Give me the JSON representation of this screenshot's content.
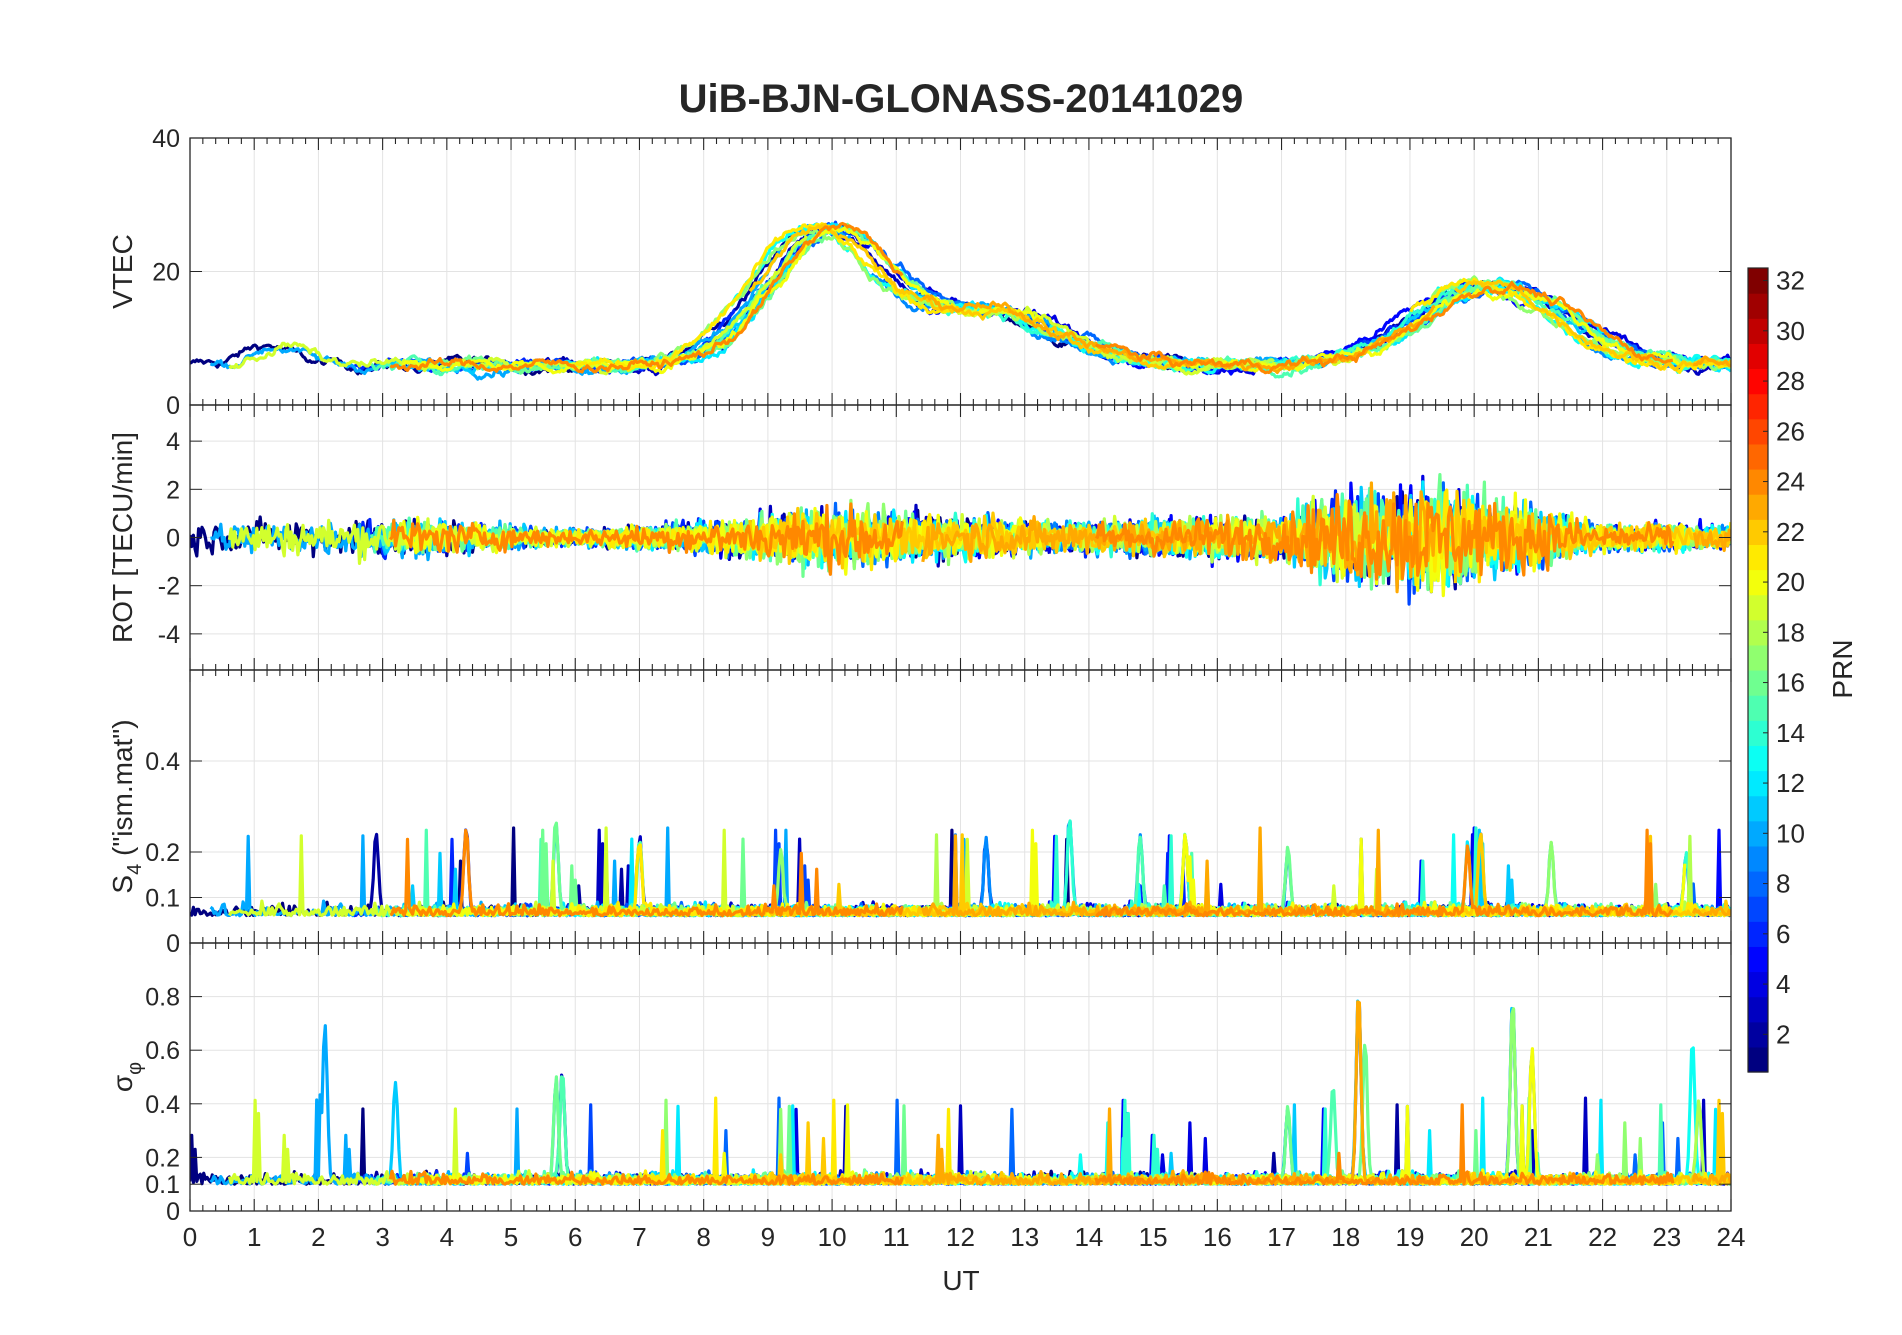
{
  "chart_data": {
    "type": "line",
    "title": "UiB-BJN-GLONASS-20141029",
    "xlabel": "UT",
    "x_ticks": [
      "0",
      "1",
      "2",
      "3",
      "4",
      "5",
      "6",
      "7",
      "8",
      "9",
      "10",
      "11",
      "12",
      "13",
      "14",
      "15",
      "16",
      "17",
      "18",
      "19",
      "20",
      "21",
      "22",
      "23",
      "24"
    ],
    "xlim": [
      0,
      24
    ],
    "grid": true,
    "colorbar": {
      "label": "PRN",
      "range": [
        1,
        32
      ],
      "ticks": [
        "2",
        "4",
        "6",
        "8",
        "10",
        "12",
        "14",
        "16",
        "18",
        "20",
        "22",
        "24",
        "26",
        "28",
        "30",
        "32"
      ],
      "colormap": "jet"
    },
    "panels": [
      {
        "name": "vtec",
        "ylabel": "VTEC",
        "ylim": [
          0,
          40
        ],
        "y_ticks": [
          {
            "v": 0,
            "t": "0"
          },
          {
            "v": 20,
            "t": "20"
          },
          {
            "v": 40,
            "t": "40"
          }
        ],
        "trend": {
          "base": 6,
          "peaks": [
            [
              9.6,
              20,
              1.3
            ],
            [
              12.2,
              8,
              1.6
            ],
            [
              20,
              12,
              1.6
            ],
            [
              1.2,
              3,
              0.5
            ]
          ]
        },
        "noise": 1.4
      },
      {
        "name": "rot",
        "ylabel": "ROT [TECU/min]",
        "ylim": [
          -5.5,
          5.5
        ],
        "y_ticks": [
          {
            "v": -4,
            "t": "-4"
          },
          {
            "v": -2,
            "t": "-2"
          },
          {
            "v": 0,
            "t": "0"
          },
          {
            "v": 2,
            "t": "2"
          },
          {
            "v": 4,
            "t": "4"
          }
        ],
        "noise_profile": [
          [
            0,
            0.6
          ],
          [
            3,
            0.8
          ],
          [
            6,
            0.3
          ],
          [
            8,
            0.6
          ],
          [
            10,
            1.2
          ],
          [
            12,
            0.8
          ],
          [
            14,
            0.6
          ],
          [
            17,
            0.9
          ],
          [
            18,
            1.8
          ],
          [
            19,
            2.0
          ],
          [
            20,
            1.6
          ],
          [
            21,
            1.2
          ],
          [
            22,
            0.5
          ],
          [
            24,
            0.5
          ]
        ]
      },
      {
        "name": "s4",
        "ylabel": "S_4 (\"ism.mat\")",
        "ylim": [
          0,
          0.6
        ],
        "y_ticks": [
          {
            "v": 0,
            "t": "0"
          },
          {
            "v": 0.1,
            "t": "0.1"
          },
          {
            "v": 0.2,
            "t": "0.2"
          },
          {
            "v": 0.4,
            "t": "0.4"
          }
        ],
        "base": 0.06,
        "spikes": [
          [
            2.9,
            0.24
          ],
          [
            4.3,
            0.25
          ],
          [
            5.7,
            0.26
          ],
          [
            7.0,
            0.22
          ],
          [
            9.2,
            0.2
          ],
          [
            12.4,
            0.22
          ],
          [
            13.7,
            0.27
          ],
          [
            14.8,
            0.23
          ],
          [
            15.5,
            0.23
          ],
          [
            17.1,
            0.2
          ],
          [
            19.9,
            0.21
          ],
          [
            20.1,
            0.24
          ],
          [
            21.2,
            0.22
          ],
          [
            23.3,
            0.19
          ]
        ]
      },
      {
        "name": "sigma",
        "ylabel": "σ_φ",
        "ylim": [
          0,
          1
        ],
        "y_ticks": [
          {
            "v": 0,
            "t": "0"
          },
          {
            "v": 0.1,
            "t": "0.1"
          },
          {
            "v": 0.2,
            "t": "0.2"
          },
          {
            "v": 0.4,
            "t": "0.4"
          },
          {
            "v": 0.6,
            "t": "0.6"
          },
          {
            "v": 0.8,
            "t": "0.8"
          }
        ],
        "base": 0.1,
        "spikes": [
          [
            2.1,
            0.7
          ],
          [
            3.2,
            0.47
          ],
          [
            5.7,
            0.48
          ],
          [
            5.8,
            0.5
          ],
          [
            17.1,
            0.36
          ],
          [
            17.8,
            0.45
          ],
          [
            18.2,
            0.81
          ],
          [
            18.3,
            0.62
          ],
          [
            20.6,
            0.78
          ],
          [
            20.9,
            0.6
          ],
          [
            23.4,
            0.64
          ],
          [
            23.5,
            0.4
          ]
        ]
      }
    ],
    "series": [
      {
        "prn": 1,
        "name": "1"
      },
      {
        "prn": 2,
        "name": "2"
      },
      {
        "prn": 3,
        "name": "3"
      },
      {
        "prn": 4,
        "name": "4"
      },
      {
        "prn": 5,
        "name": "5"
      },
      {
        "prn": 6,
        "name": "6"
      },
      {
        "prn": 7,
        "name": "7"
      },
      {
        "prn": 8,
        "name": "8"
      },
      {
        "prn": 9,
        "name": "9"
      },
      {
        "prn": 10,
        "name": "10"
      },
      {
        "prn": 11,
        "name": "11"
      },
      {
        "prn": 12,
        "name": "12"
      },
      {
        "prn": 13,
        "name": "13"
      },
      {
        "prn": 14,
        "name": "14"
      },
      {
        "prn": 15,
        "name": "15"
      },
      {
        "prn": 16,
        "name": "16"
      },
      {
        "prn": 17,
        "name": "17"
      },
      {
        "prn": 18,
        "name": "18"
      },
      {
        "prn": 19,
        "name": "19"
      },
      {
        "prn": 20,
        "name": "20"
      },
      {
        "prn": 21,
        "name": "21"
      },
      {
        "prn": 22,
        "name": "22"
      },
      {
        "prn": 23,
        "name": "23"
      },
      {
        "prn": 24,
        "name": "24"
      }
    ]
  }
}
